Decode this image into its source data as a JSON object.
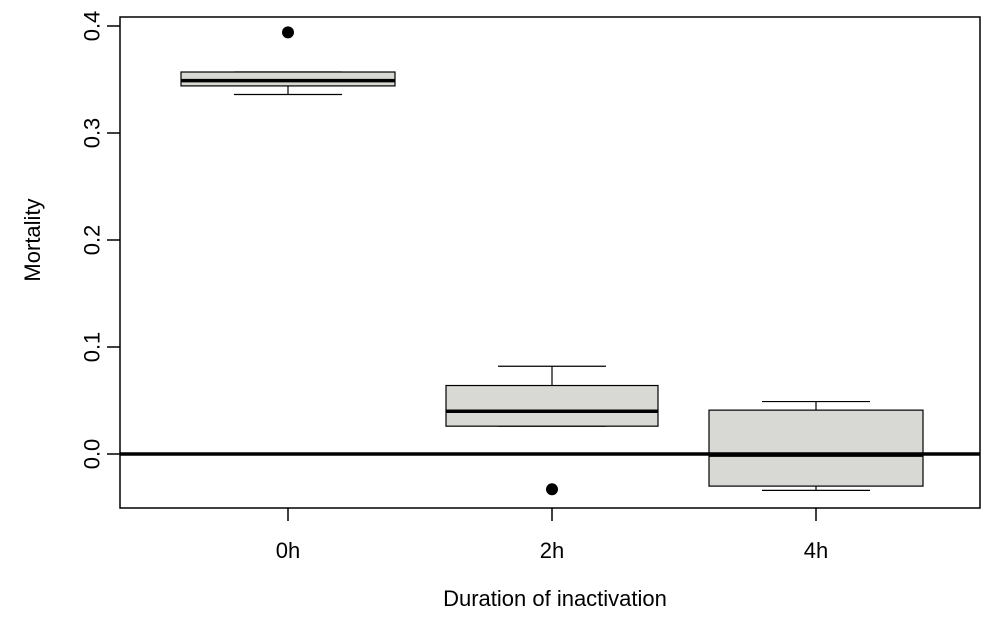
{
  "chart_data": {
    "type": "boxplot",
    "xlabel": "Duration of inactivation",
    "ylabel": "Mortality",
    "ylim": [
      -0.05,
      0.405
    ],
    "yticks": [
      0.0,
      0.1,
      0.2,
      0.3,
      0.4
    ],
    "ytick_labels": [
      "0.0",
      "0.1",
      "0.2",
      "0.3",
      "0.4"
    ],
    "categories": [
      "0h",
      "2h",
      "4h"
    ],
    "boxes": [
      {
        "category": "0h",
        "whisker_low": 0.336,
        "q1": 0.344,
        "median": 0.349,
        "q3": 0.357,
        "whisker_high": 0.357,
        "outliers": [
          0.394
        ]
      },
      {
        "category": "2h",
        "whisker_low": 0.026,
        "q1": 0.026,
        "median": 0.04,
        "q3": 0.064,
        "whisker_high": 0.082,
        "outliers": [
          -0.033
        ]
      },
      {
        "category": "4h",
        "whisker_low": -0.034,
        "q1": -0.03,
        "median": -0.001,
        "q3": 0.041,
        "whisker_high": 0.049,
        "outliers": []
      }
    ],
    "reference_line": {
      "y": 0.0
    },
    "box_fill": "#d8d8d4",
    "line_color": "#000000",
    "grid": false,
    "legend": "none"
  }
}
